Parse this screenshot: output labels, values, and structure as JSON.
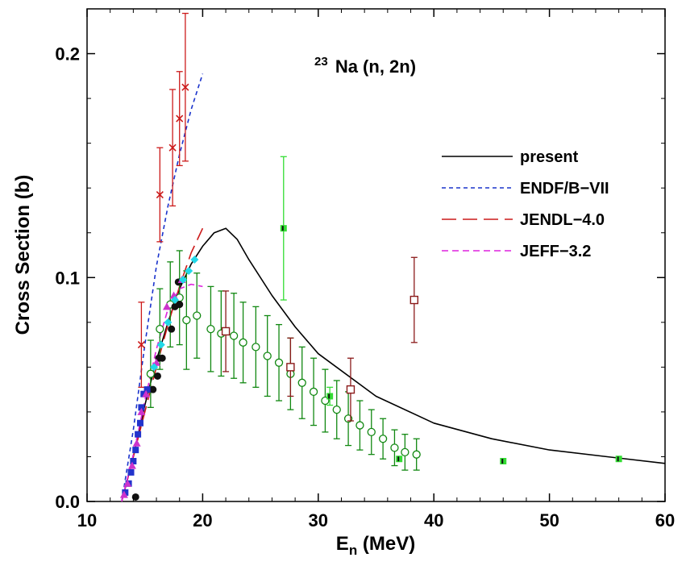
{
  "chart_data": {
    "type": "scatter",
    "title": "",
    "annotation": {
      "mass_number": "23",
      "reaction": "Na (n, 2n)"
    },
    "xlabel": {
      "main": "E",
      "sub": "n",
      "unit": " (MeV)"
    },
    "ylabel": "Cross Section (b)",
    "xlim": [
      10,
      60
    ],
    "ylim": [
      0,
      0.22
    ],
    "xticks": [
      10,
      20,
      30,
      40,
      50,
      60
    ],
    "xtick_labels": [
      "10",
      "20",
      "30",
      "40",
      "50",
      "60"
    ],
    "yticks": [
      0.0,
      0.1,
      0.2
    ],
    "ytick_labels": [
      "0.0",
      "0.1",
      "0.2"
    ],
    "grid": false,
    "legend_position": "right",
    "curves": [
      {
        "name": "present",
        "color": "#000000",
        "dash": "",
        "x": [
          13.0,
          14,
          15,
          16,
          17,
          18,
          19,
          20,
          21,
          22,
          23,
          24,
          26,
          28,
          30,
          35,
          40,
          45,
          50,
          55,
          60
        ],
        "y": [
          0.0,
          0.02,
          0.043,
          0.063,
          0.08,
          0.095,
          0.106,
          0.114,
          0.12,
          0.122,
          0.117,
          0.108,
          0.092,
          0.078,
          0.066,
          0.047,
          0.035,
          0.028,
          0.023,
          0.02,
          0.017
        ]
      },
      {
        "name": "ENDF/B-VII",
        "color": "#1a33cc",
        "dash": "5,4",
        "x": [
          13.0,
          14,
          15,
          16,
          17,
          18,
          19,
          20
        ],
        "y": [
          0.0,
          0.032,
          0.07,
          0.105,
          0.132,
          0.155,
          0.175,
          0.191
        ]
      },
      {
        "name": "JENDL-4.0",
        "color": "#cc1a1a",
        "dash": "18,8",
        "x": [
          13.0,
          14,
          15,
          16,
          17,
          18,
          19,
          20
        ],
        "y": [
          0.0,
          0.02,
          0.04,
          0.06,
          0.079,
          0.096,
          0.111,
          0.122
        ]
      },
      {
        "name": "JEFF-3.2",
        "color": "#dd22dd",
        "dash": "8,5",
        "x": [
          13.0,
          14,
          15,
          16,
          17,
          18,
          19,
          20
        ],
        "y": [
          0.0,
          0.021,
          0.045,
          0.068,
          0.086,
          0.095,
          0.097,
          0.096
        ]
      }
    ],
    "series": [
      {
        "name": "exp-red-cross",
        "color": "#cc1a1a",
        "marker": "x",
        "points": [
          [
            14.7,
            0.07,
            0.019
          ],
          [
            16.3,
            0.137,
            0.021
          ],
          [
            17.4,
            0.158,
            0.026
          ],
          [
            18.0,
            0.171,
            0.021
          ],
          [
            18.5,
            0.185,
            0.033
          ]
        ]
      },
      {
        "name": "exp-green-circle",
        "color": "#118811",
        "marker": "open-circle",
        "points": [
          [
            15.5,
            0.057,
            0.015
          ],
          [
            16.3,
            0.077,
            0.018
          ],
          [
            17.2,
            0.088,
            0.019
          ],
          [
            18.0,
            0.091,
            0.021
          ],
          [
            18.6,
            0.081,
            0.022
          ],
          [
            19.5,
            0.083,
            0.019
          ],
          [
            20.7,
            0.077,
            0.019
          ],
          [
            21.6,
            0.075,
            0.019
          ],
          [
            22.7,
            0.074,
            0.019
          ],
          [
            23.5,
            0.071,
            0.018
          ],
          [
            24.6,
            0.069,
            0.018
          ],
          [
            25.6,
            0.065,
            0.018
          ],
          [
            26.6,
            0.062,
            0.017
          ],
          [
            27.6,
            0.057,
            0.016
          ],
          [
            28.6,
            0.053,
            0.016
          ],
          [
            29.6,
            0.049,
            0.015
          ],
          [
            30.6,
            0.045,
            0.014
          ],
          [
            31.6,
            0.041,
            0.013
          ],
          [
            32.6,
            0.037,
            0.012
          ],
          [
            33.6,
            0.034,
            0.011
          ],
          [
            34.6,
            0.031,
            0.01
          ],
          [
            35.6,
            0.028,
            0.009
          ],
          [
            36.6,
            0.024,
            0.008
          ],
          [
            37.5,
            0.022,
            0.008
          ],
          [
            38.5,
            0.021,
            0.007
          ]
        ]
      },
      {
        "name": "exp-darkred-square",
        "color": "#8b1a1a",
        "marker": "open-square",
        "points": [
          [
            22.0,
            0.076,
            0.018
          ],
          [
            27.6,
            0.06,
            0.013
          ],
          [
            32.8,
            0.05,
            0.014
          ],
          [
            38.3,
            0.09,
            0.019
          ]
        ]
      },
      {
        "name": "exp-black-circle",
        "color": "#111111",
        "marker": "filled-circle",
        "points": [
          [
            14.2,
            0.002,
            0.001
          ],
          [
            15.7,
            0.05,
            0.002
          ],
          [
            16.1,
            0.056,
            0.002
          ],
          [
            16.2,
            0.064,
            0.002
          ],
          [
            16.5,
            0.064,
            0.002
          ],
          [
            17.3,
            0.077,
            0.003
          ],
          [
            17.6,
            0.087,
            0.003
          ],
          [
            17.9,
            0.098,
            0.003
          ],
          [
            18.0,
            0.088,
            0.003
          ]
        ]
      },
      {
        "name": "exp-blue-square",
        "color": "#2233cc",
        "marker": "filled-square",
        "points": [
          [
            13.3,
            0.004,
            0.002
          ],
          [
            13.6,
            0.008,
            0.002
          ],
          [
            13.8,
            0.013,
            0.002
          ],
          [
            14.0,
            0.018,
            0.002
          ],
          [
            14.2,
            0.023,
            0.002
          ],
          [
            14.4,
            0.03,
            0.003
          ],
          [
            14.6,
            0.035,
            0.003
          ],
          [
            14.7,
            0.042,
            0.003
          ],
          [
            14.9,
            0.048,
            0.003
          ],
          [
            15.2,
            0.05,
            0.003
          ]
        ]
      },
      {
        "name": "exp-magenta-triangle",
        "color": "#cc33cc",
        "marker": "filled-triangle",
        "points": [
          [
            13.2,
            0.003,
            0.002
          ],
          [
            13.5,
            0.008,
            0.002
          ],
          [
            13.9,
            0.016,
            0.002
          ],
          [
            14.3,
            0.026,
            0.002
          ],
          [
            14.7,
            0.04,
            0.003
          ],
          [
            15.1,
            0.048,
            0.003
          ],
          [
            16.0,
            0.062,
            0.003
          ],
          [
            16.9,
            0.087,
            0.003
          ],
          [
            17.5,
            0.092,
            0.003
          ],
          [
            18.2,
            0.099,
            0.003
          ]
        ]
      },
      {
        "name": "exp-cyan-diamond",
        "color": "#22d8e8",
        "marker": "filled-diamond",
        "points": [
          [
            15.8,
            0.06,
            0.003
          ],
          [
            16.4,
            0.07,
            0.003
          ],
          [
            17.0,
            0.08,
            0.003
          ],
          [
            17.6,
            0.09,
            0.003
          ],
          [
            18.3,
            0.099,
            0.003
          ],
          [
            18.8,
            0.103,
            0.003
          ],
          [
            19.3,
            0.108,
            0.003
          ]
        ]
      },
      {
        "name": "exp-green-filled",
        "color": "#33dd33",
        "marker": "filled-square-green",
        "points": [
          [
            27.0,
            0.122,
            0.032
          ],
          [
            31.0,
            0.047,
            0.004
          ],
          [
            37.0,
            0.019,
            0.003
          ],
          [
            46.0,
            0.018,
            0.002
          ],
          [
            56.0,
            0.019,
            0.003
          ]
        ]
      }
    ],
    "legend": [
      {
        "label": "present",
        "color": "#000000",
        "dash": ""
      },
      {
        "label": "ENDF/B−VII",
        "color": "#1a33cc",
        "dash": "5,4"
      },
      {
        "label": "JENDL−4.0",
        "color": "#cc1a1a",
        "dash": "18,8"
      },
      {
        "label": "JEFF−3.2",
        "color": "#dd22dd",
        "dash": "8,5"
      }
    ]
  }
}
